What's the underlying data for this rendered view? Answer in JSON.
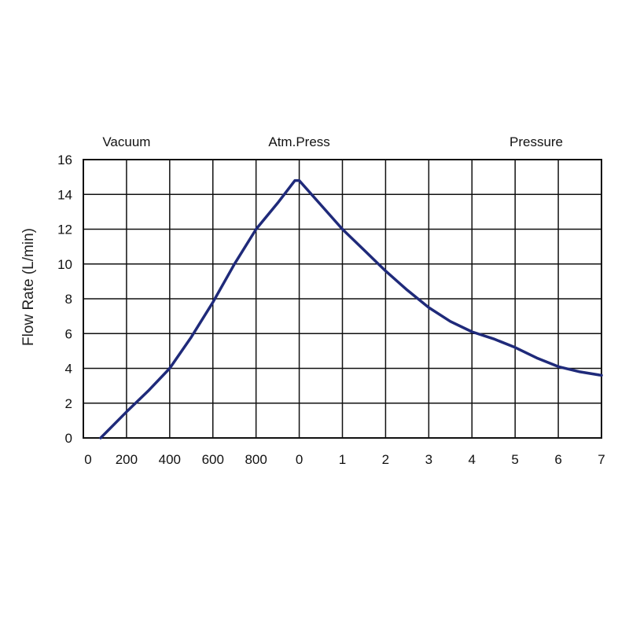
{
  "chart_data": {
    "type": "line",
    "region_labels": [
      {
        "text": "Vacuum",
        "x": 1
      },
      {
        "text": "Atm.Press",
        "x": 5
      },
      {
        "text": "Pressure",
        "x": 10
      }
    ],
    "ylabel": "Flow Rate  (L/min)",
    "ylim": [
      0,
      16
    ],
    "yticks": [
      "0",
      "2",
      "4",
      "6",
      "8",
      "10",
      "12",
      "14",
      "16"
    ],
    "xlim": [
      0,
      12
    ],
    "xticks": [
      {
        "label": "0",
        "x": 0
      },
      {
        "label": "200",
        "x": 1
      },
      {
        "label": "400",
        "x": 2
      },
      {
        "label": "600",
        "x": 3
      },
      {
        "label": "800",
        "x": 4
      },
      {
        "label": "0",
        "x": 5
      },
      {
        "label": "1",
        "x": 6
      },
      {
        "label": "2",
        "x": 7
      },
      {
        "label": "3",
        "x": 8
      },
      {
        "label": "4",
        "x": 9
      },
      {
        "label": "5",
        "x": 10
      },
      {
        "label": "6",
        "x": 11
      },
      {
        "label": "7",
        "x": 12
      }
    ],
    "grid": true,
    "series": [
      {
        "color": "#1f2a7a",
        "points": [
          [
            0.4,
            0
          ],
          [
            1.0,
            1.5
          ],
          [
            1.5,
            2.7
          ],
          [
            2.0,
            4.0
          ],
          [
            2.5,
            5.8
          ],
          [
            3.0,
            7.8
          ],
          [
            3.5,
            10.0
          ],
          [
            4.0,
            12.0
          ],
          [
            4.5,
            13.5
          ],
          [
            4.9,
            14.8
          ],
          [
            5.0,
            14.8
          ],
          [
            5.5,
            13.4
          ],
          [
            6.0,
            12.0
          ],
          [
            6.5,
            10.8
          ],
          [
            7.0,
            9.6
          ],
          [
            7.5,
            8.5
          ],
          [
            8.0,
            7.5
          ],
          [
            8.5,
            6.7
          ],
          [
            9.0,
            6.1
          ],
          [
            9.5,
            5.7
          ],
          [
            10.0,
            5.2
          ],
          [
            10.5,
            4.6
          ],
          [
            11.0,
            4.1
          ],
          [
            11.5,
            3.8
          ],
          [
            12.0,
            3.6
          ]
        ]
      }
    ]
  }
}
